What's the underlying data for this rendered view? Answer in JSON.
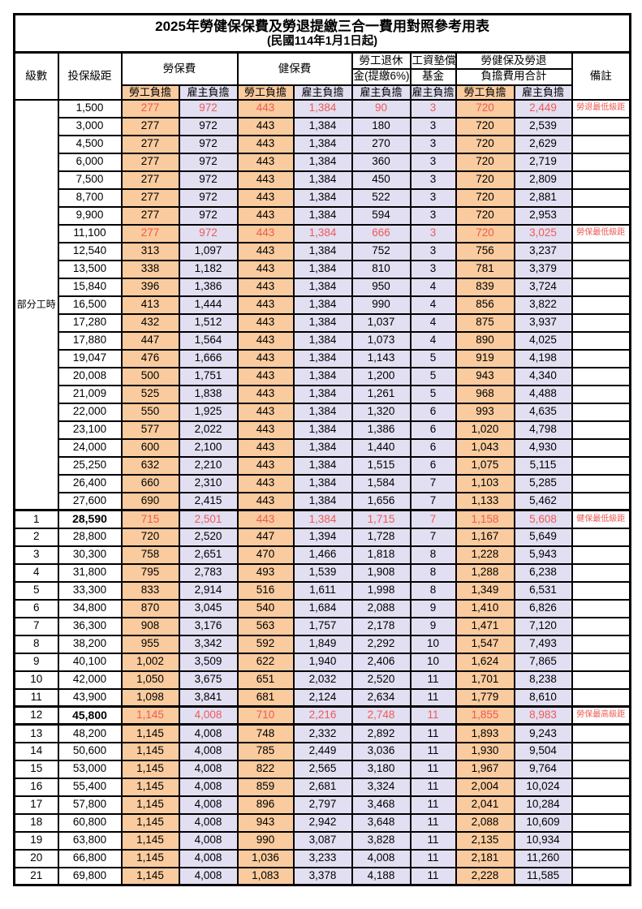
{
  "title": "2025年勞健保保費及勞退提繳三合一費用對照參考用表",
  "subtitle": "(民國114年1月1日起)",
  "header": {
    "level": "級數",
    "bracket": "投保級距",
    "labor_ins": "勞保費",
    "health_ins": "健保費",
    "pension_line1": "勞工退休",
    "pension_line2": "金(提繳6%)",
    "wage_fund_line1": "工資墊償",
    "wage_fund_line2": "基金",
    "total_line1": "勞健保及勞退",
    "total_line2": "負擔費用合計",
    "remark": "備註",
    "employee": "勞工負擔",
    "employer": "雇主負擔"
  },
  "part_time_label": "部分工時",
  "colors": {
    "employee_fill": "#f9cb9e",
    "employer_fill": "#e2dff2",
    "highlight_text": "#ee5a55"
  },
  "rows": [
    {
      "level": "",
      "bracket": "1,500",
      "labor_emp": "277",
      "labor_er": "972",
      "health_emp": "443",
      "health_er": "1,384",
      "pension_er": "90",
      "wage_er": "3",
      "total_emp": "720",
      "total_er": "2,449",
      "remark": "勞退最低級距",
      "red": true,
      "bold": false
    },
    {
      "level": "",
      "bracket": "3,000",
      "labor_emp": "277",
      "labor_er": "972",
      "health_emp": "443",
      "health_er": "1,384",
      "pension_er": "180",
      "wage_er": "3",
      "total_emp": "720",
      "total_er": "2,539",
      "remark": "",
      "red": false,
      "bold": false
    },
    {
      "level": "",
      "bracket": "4,500",
      "labor_emp": "277",
      "labor_er": "972",
      "health_emp": "443",
      "health_er": "1,384",
      "pension_er": "270",
      "wage_er": "3",
      "total_emp": "720",
      "total_er": "2,629",
      "remark": "",
      "red": false,
      "bold": false
    },
    {
      "level": "",
      "bracket": "6,000",
      "labor_emp": "277",
      "labor_er": "972",
      "health_emp": "443",
      "health_er": "1,384",
      "pension_er": "360",
      "wage_er": "3",
      "total_emp": "720",
      "total_er": "2,719",
      "remark": "",
      "red": false,
      "bold": false
    },
    {
      "level": "",
      "bracket": "7,500",
      "labor_emp": "277",
      "labor_er": "972",
      "health_emp": "443",
      "health_er": "1,384",
      "pension_er": "450",
      "wage_er": "3",
      "total_emp": "720",
      "total_er": "2,809",
      "remark": "",
      "red": false,
      "bold": false
    },
    {
      "level": "",
      "bracket": "8,700",
      "labor_emp": "277",
      "labor_er": "972",
      "health_emp": "443",
      "health_er": "1,384",
      "pension_er": "522",
      "wage_er": "3",
      "total_emp": "720",
      "total_er": "2,881",
      "remark": "",
      "red": false,
      "bold": false
    },
    {
      "level": "",
      "bracket": "9,900",
      "labor_emp": "277",
      "labor_er": "972",
      "health_emp": "443",
      "health_er": "1,384",
      "pension_er": "594",
      "wage_er": "3",
      "total_emp": "720",
      "total_er": "2,953",
      "remark": "",
      "red": false,
      "bold": false
    },
    {
      "level": "",
      "bracket": "11,100",
      "labor_emp": "277",
      "labor_er": "972",
      "health_emp": "443",
      "health_er": "1,384",
      "pension_er": "666",
      "wage_er": "3",
      "total_emp": "720",
      "total_er": "3,025",
      "remark": "勞保最低級距",
      "red": true,
      "bold": false
    },
    {
      "level": "",
      "bracket": "12,540",
      "labor_emp": "313",
      "labor_er": "1,097",
      "health_emp": "443",
      "health_er": "1,384",
      "pension_er": "752",
      "wage_er": "3",
      "total_emp": "756",
      "total_er": "3,237",
      "remark": "",
      "red": false,
      "bold": false
    },
    {
      "level": "",
      "bracket": "13,500",
      "labor_emp": "338",
      "labor_er": "1,182",
      "health_emp": "443",
      "health_er": "1,384",
      "pension_er": "810",
      "wage_er": "3",
      "total_emp": "781",
      "total_er": "3,379",
      "remark": "",
      "red": false,
      "bold": false
    },
    {
      "level": "",
      "bracket": "15,840",
      "labor_emp": "396",
      "labor_er": "1,386",
      "health_emp": "443",
      "health_er": "1,384",
      "pension_er": "950",
      "wage_er": "4",
      "total_emp": "839",
      "total_er": "3,724",
      "remark": "",
      "red": false,
      "bold": false
    },
    {
      "level": "",
      "bracket": "16,500",
      "labor_emp": "413",
      "labor_er": "1,444",
      "health_emp": "443",
      "health_er": "1,384",
      "pension_er": "990",
      "wage_er": "4",
      "total_emp": "856",
      "total_er": "3,822",
      "remark": "",
      "red": false,
      "bold": false
    },
    {
      "level": "",
      "bracket": "17,280",
      "labor_emp": "432",
      "labor_er": "1,512",
      "health_emp": "443",
      "health_er": "1,384",
      "pension_er": "1,037",
      "wage_er": "4",
      "total_emp": "875",
      "total_er": "3,937",
      "remark": "",
      "red": false,
      "bold": false
    },
    {
      "level": "",
      "bracket": "17,880",
      "labor_emp": "447",
      "labor_er": "1,564",
      "health_emp": "443",
      "health_er": "1,384",
      "pension_er": "1,073",
      "wage_er": "4",
      "total_emp": "890",
      "total_er": "4,025",
      "remark": "",
      "red": false,
      "bold": false
    },
    {
      "level": "",
      "bracket": "19,047",
      "labor_emp": "476",
      "labor_er": "1,666",
      "health_emp": "443",
      "health_er": "1,384",
      "pension_er": "1,143",
      "wage_er": "5",
      "total_emp": "919",
      "total_er": "4,198",
      "remark": "",
      "red": false,
      "bold": false
    },
    {
      "level": "",
      "bracket": "20,008",
      "labor_emp": "500",
      "labor_er": "1,751",
      "health_emp": "443",
      "health_er": "1,384",
      "pension_er": "1,200",
      "wage_er": "5",
      "total_emp": "943",
      "total_er": "4,340",
      "remark": "",
      "red": false,
      "bold": false
    },
    {
      "level": "",
      "bracket": "21,009",
      "labor_emp": "525",
      "labor_er": "1,838",
      "health_emp": "443",
      "health_er": "1,384",
      "pension_er": "1,261",
      "wage_er": "5",
      "total_emp": "968",
      "total_er": "4,488",
      "remark": "",
      "red": false,
      "bold": false
    },
    {
      "level": "",
      "bracket": "22,000",
      "labor_emp": "550",
      "labor_er": "1,925",
      "health_emp": "443",
      "health_er": "1,384",
      "pension_er": "1,320",
      "wage_er": "6",
      "total_emp": "993",
      "total_er": "4,635",
      "remark": "",
      "red": false,
      "bold": false
    },
    {
      "level": "",
      "bracket": "23,100",
      "labor_emp": "577",
      "labor_er": "2,022",
      "health_emp": "443",
      "health_er": "1,384",
      "pension_er": "1,386",
      "wage_er": "6",
      "total_emp": "1,020",
      "total_er": "4,798",
      "remark": "",
      "red": false,
      "bold": false
    },
    {
      "level": "",
      "bracket": "24,000",
      "labor_emp": "600",
      "labor_er": "2,100",
      "health_emp": "443",
      "health_er": "1,384",
      "pension_er": "1,440",
      "wage_er": "6",
      "total_emp": "1,043",
      "total_er": "4,930",
      "remark": "",
      "red": false,
      "bold": false
    },
    {
      "level": "",
      "bracket": "25,250",
      "labor_emp": "632",
      "labor_er": "2,210",
      "health_emp": "443",
      "health_er": "1,384",
      "pension_er": "1,515",
      "wage_er": "6",
      "total_emp": "1,075",
      "total_er": "5,115",
      "remark": "",
      "red": false,
      "bold": false
    },
    {
      "level": "",
      "bracket": "26,400",
      "labor_emp": "660",
      "labor_er": "2,310",
      "health_emp": "443",
      "health_er": "1,384",
      "pension_er": "1,584",
      "wage_er": "7",
      "total_emp": "1,103",
      "total_er": "5,285",
      "remark": "",
      "red": false,
      "bold": false
    },
    {
      "level": "",
      "bracket": "27,600",
      "labor_emp": "690",
      "labor_er": "2,415",
      "health_emp": "443",
      "health_er": "1,384",
      "pension_er": "1,656",
      "wage_er": "7",
      "total_emp": "1,133",
      "total_er": "5,462",
      "remark": "",
      "red": false,
      "bold": false
    },
    {
      "level": "1",
      "bracket": "28,590",
      "labor_emp": "715",
      "labor_er": "2,501",
      "health_emp": "443",
      "health_er": "1,384",
      "pension_er": "1,715",
      "wage_er": "7",
      "total_emp": "1,158",
      "total_er": "5,608",
      "remark": "健保最低級距",
      "red": true,
      "bold": true,
      "thick_top": true
    },
    {
      "level": "2",
      "bracket": "28,800",
      "labor_emp": "720",
      "labor_er": "2,520",
      "health_emp": "447",
      "health_er": "1,394",
      "pension_er": "1,728",
      "wage_er": "7",
      "total_emp": "1,167",
      "total_er": "5,649",
      "remark": "",
      "red": false,
      "bold": false
    },
    {
      "level": "3",
      "bracket": "30,300",
      "labor_emp": "758",
      "labor_er": "2,651",
      "health_emp": "470",
      "health_er": "1,466",
      "pension_er": "1,818",
      "wage_er": "8",
      "total_emp": "1,228",
      "total_er": "5,943",
      "remark": "",
      "red": false,
      "bold": false
    },
    {
      "level": "4",
      "bracket": "31,800",
      "labor_emp": "795",
      "labor_er": "2,783",
      "health_emp": "493",
      "health_er": "1,539",
      "pension_er": "1,908",
      "wage_er": "8",
      "total_emp": "1,288",
      "total_er": "6,238",
      "remark": "",
      "red": false,
      "bold": false
    },
    {
      "level": "5",
      "bracket": "33,300",
      "labor_emp": "833",
      "labor_er": "2,914",
      "health_emp": "516",
      "health_er": "1,611",
      "pension_er": "1,998",
      "wage_er": "8",
      "total_emp": "1,349",
      "total_er": "6,531",
      "remark": "",
      "red": false,
      "bold": false
    },
    {
      "level": "6",
      "bracket": "34,800",
      "labor_emp": "870",
      "labor_er": "3,045",
      "health_emp": "540",
      "health_er": "1,684",
      "pension_er": "2,088",
      "wage_er": "9",
      "total_emp": "1,410",
      "total_er": "6,826",
      "remark": "",
      "red": false,
      "bold": false
    },
    {
      "level": "7",
      "bracket": "36,300",
      "labor_emp": "908",
      "labor_er": "3,176",
      "health_emp": "563",
      "health_er": "1,757",
      "pension_er": "2,178",
      "wage_er": "9",
      "total_emp": "1,471",
      "total_er": "7,120",
      "remark": "",
      "red": false,
      "bold": false
    },
    {
      "level": "8",
      "bracket": "38,200",
      "labor_emp": "955",
      "labor_er": "3,342",
      "health_emp": "592",
      "health_er": "1,849",
      "pension_er": "2,292",
      "wage_er": "10",
      "total_emp": "1,547",
      "total_er": "7,493",
      "remark": "",
      "red": false,
      "bold": false
    },
    {
      "level": "9",
      "bracket": "40,100",
      "labor_emp": "1,002",
      "labor_er": "3,509",
      "health_emp": "622",
      "health_er": "1,940",
      "pension_er": "2,406",
      "wage_er": "10",
      "total_emp": "1,624",
      "total_er": "7,865",
      "remark": "",
      "red": false,
      "bold": false
    },
    {
      "level": "10",
      "bracket": "42,000",
      "labor_emp": "1,050",
      "labor_er": "3,675",
      "health_emp": "651",
      "health_er": "2,032",
      "pension_er": "2,520",
      "wage_er": "11",
      "total_emp": "1,701",
      "total_er": "8,238",
      "remark": "",
      "red": false,
      "bold": false
    },
    {
      "level": "11",
      "bracket": "43,900",
      "labor_emp": "1,098",
      "labor_er": "3,841",
      "health_emp": "681",
      "health_er": "2,124",
      "pension_er": "2,634",
      "wage_er": "11",
      "total_emp": "1,779",
      "total_er": "8,610",
      "remark": "",
      "red": false,
      "bold": false
    },
    {
      "level": "12",
      "bracket": "45,800",
      "labor_emp": "1,145",
      "labor_er": "4,008",
      "health_emp": "710",
      "health_er": "2,216",
      "pension_er": "2,748",
      "wage_er": "11",
      "total_emp": "1,855",
      "total_er": "8,983",
      "remark": "勞保最高級距",
      "red": true,
      "bold": true,
      "thick_top": true,
      "thick_bottom": true
    },
    {
      "level": "13",
      "bracket": "48,200",
      "labor_emp": "1,145",
      "labor_er": "4,008",
      "health_emp": "748",
      "health_er": "2,332",
      "pension_er": "2,892",
      "wage_er": "11",
      "total_emp": "1,893",
      "total_er": "9,243",
      "remark": "",
      "red": false,
      "bold": false
    },
    {
      "level": "14",
      "bracket": "50,600",
      "labor_emp": "1,145",
      "labor_er": "4,008",
      "health_emp": "785",
      "health_er": "2,449",
      "pension_er": "3,036",
      "wage_er": "11",
      "total_emp": "1,930",
      "total_er": "9,504",
      "remark": "",
      "red": false,
      "bold": false
    },
    {
      "level": "15",
      "bracket": "53,000",
      "labor_emp": "1,145",
      "labor_er": "4,008",
      "health_emp": "822",
      "health_er": "2,565",
      "pension_er": "3,180",
      "wage_er": "11",
      "total_emp": "1,967",
      "total_er": "9,764",
      "remark": "",
      "red": false,
      "bold": false
    },
    {
      "level": "16",
      "bracket": "55,400",
      "labor_emp": "1,145",
      "labor_er": "4,008",
      "health_emp": "859",
      "health_er": "2,681",
      "pension_er": "3,324",
      "wage_er": "11",
      "total_emp": "2,004",
      "total_er": "10,024",
      "remark": "",
      "red": false,
      "bold": false
    },
    {
      "level": "17",
      "bracket": "57,800",
      "labor_emp": "1,145",
      "labor_er": "4,008",
      "health_emp": "896",
      "health_er": "2,797",
      "pension_er": "3,468",
      "wage_er": "11",
      "total_emp": "2,041",
      "total_er": "10,284",
      "remark": "",
      "red": false,
      "bold": false
    },
    {
      "level": "18",
      "bracket": "60,800",
      "labor_emp": "1,145",
      "labor_er": "4,008",
      "health_emp": "943",
      "health_er": "2,942",
      "pension_er": "3,648",
      "wage_er": "11",
      "total_emp": "2,088",
      "total_er": "10,609",
      "remark": "",
      "red": false,
      "bold": false
    },
    {
      "level": "19",
      "bracket": "63,800",
      "labor_emp": "1,145",
      "labor_er": "4,008",
      "health_emp": "990",
      "health_er": "3,087",
      "pension_er": "3,828",
      "wage_er": "11",
      "total_emp": "2,135",
      "total_er": "10,934",
      "remark": "",
      "red": false,
      "bold": false
    },
    {
      "level": "20",
      "bracket": "66,800",
      "labor_emp": "1,145",
      "labor_er": "4,008",
      "health_emp": "1,036",
      "health_er": "3,233",
      "pension_er": "4,008",
      "wage_er": "11",
      "total_emp": "2,181",
      "total_er": "11,260",
      "remark": "",
      "red": false,
      "bold": false
    },
    {
      "level": "21",
      "bracket": "69,800",
      "labor_emp": "1,145",
      "labor_er": "4,008",
      "health_emp": "1,083",
      "health_er": "3,378",
      "pension_er": "4,188",
      "wage_er": "11",
      "total_emp": "2,228",
      "total_er": "11,585",
      "remark": "",
      "red": false,
      "bold": false
    }
  ]
}
